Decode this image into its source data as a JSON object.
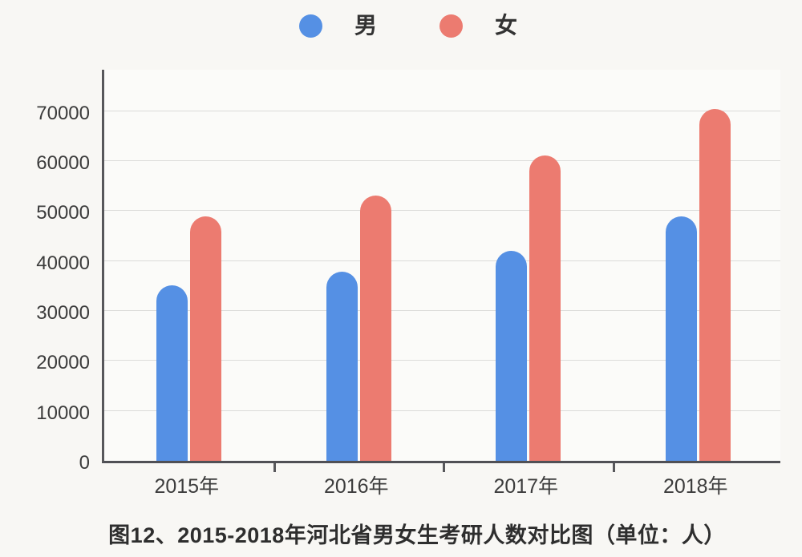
{
  "page": {
    "background": "#f8f7f4"
  },
  "legend": {
    "items": [
      {
        "label": "男",
        "color": "#5590e4"
      },
      {
        "label": "女",
        "color": "#ec7b70"
      }
    ]
  },
  "chart_data": {
    "type": "bar",
    "title": "图12、2015-2018年河北省男女生考研人数对比图（单位：人）",
    "categories": [
      "2015年",
      "2016年",
      "2017年",
      "2018年"
    ],
    "series": [
      {
        "name": "男",
        "key": "male",
        "color": "#5590e4",
        "values": [
          35200,
          37900,
          42000,
          48900
        ]
      },
      {
        "name": "女",
        "key": "female",
        "color": "#ec7b70",
        "values": [
          48900,
          53200,
          61200,
          70400
        ]
      }
    ],
    "xlabel": "",
    "ylabel": "",
    "unit": "人",
    "y_ticks": [
      0,
      10000,
      20000,
      30000,
      40000,
      50000,
      60000,
      70000
    ],
    "ylim": [
      0,
      78800
    ],
    "grid": true,
    "legend_position": "top"
  },
  "caption": "图12、2015-2018年河北省男女生考研人数对比图（单位：人）"
}
